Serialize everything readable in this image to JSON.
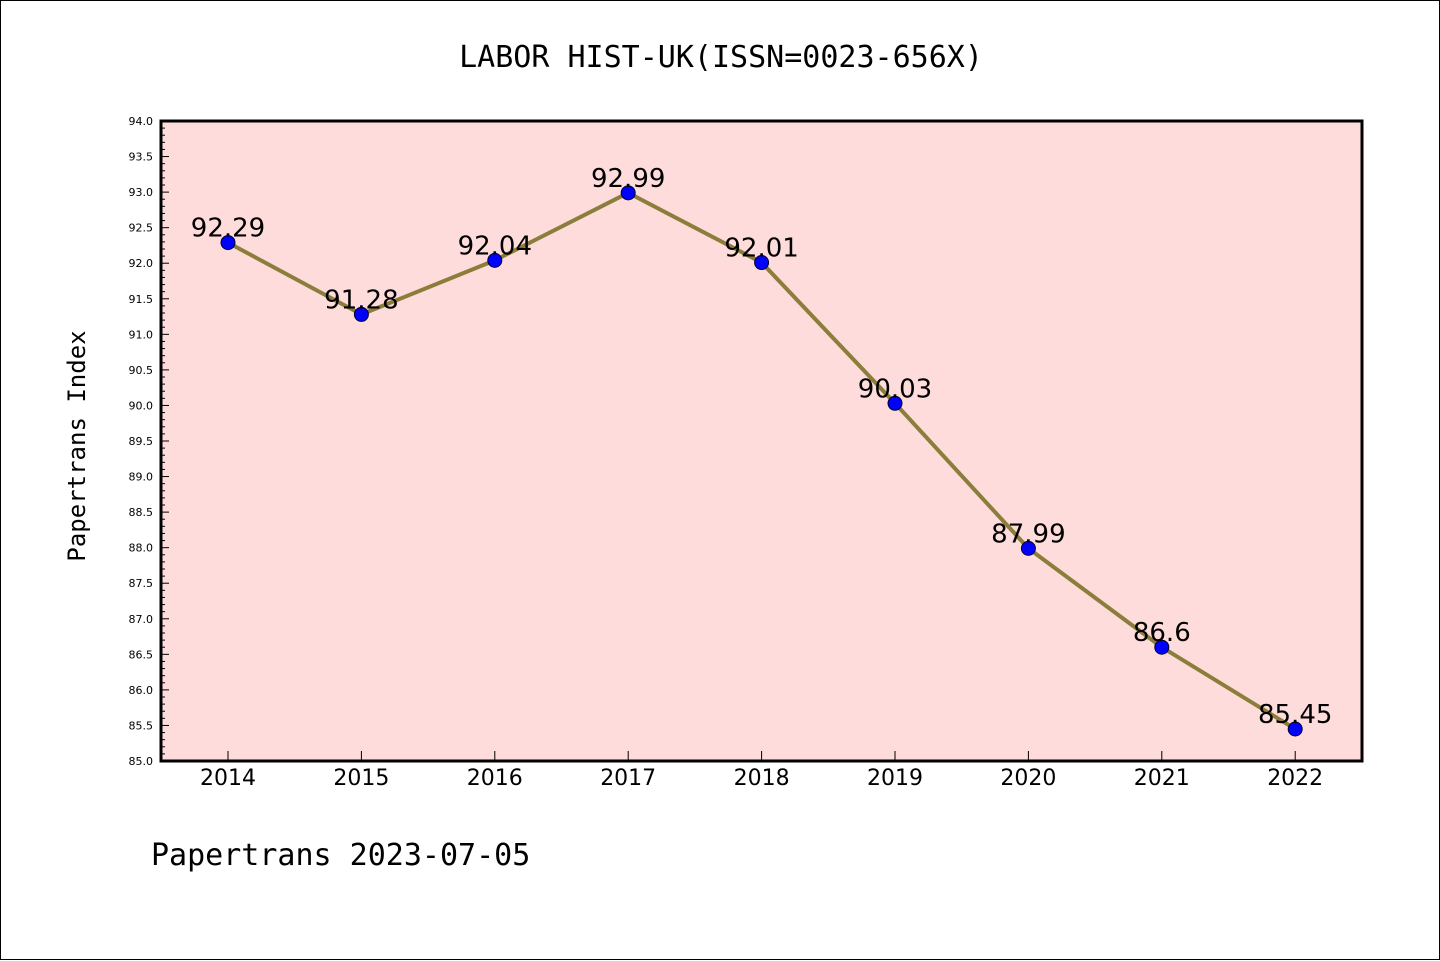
{
  "chart_data": {
    "type": "line",
    "title": "LABOR HIST-UK(ISSN=0023-656X)",
    "ylabel": "Papertrans Index",
    "xlabel": "",
    "footer": "Papertrans 2023-07-05",
    "x": [
      "2014",
      "2015",
      "2016",
      "2017",
      "2018",
      "2019",
      "2020",
      "2021",
      "2022"
    ],
    "series": [
      {
        "values": [
          92.29,
          91.28,
          92.04,
          92.99,
          92.01,
          90.03,
          87.99,
          86.6,
          85.45
        ],
        "labels": [
          "92.29",
          "91.28",
          "92.04",
          "92.99",
          "92.01",
          "90.03",
          "87.99",
          "86.6",
          "85.45"
        ]
      }
    ],
    "ylim": [
      85.0,
      94.0
    ],
    "yticks": [
      "85.0",
      "85.5",
      "86.0",
      "86.5",
      "87.0",
      "87.5",
      "88.0",
      "88.5",
      "89.0",
      "89.5",
      "90.0",
      "90.5",
      "91.0",
      "91.5",
      "92.0",
      "92.5",
      "93.0",
      "93.5",
      "94.0"
    ],
    "grid": false,
    "legend": "none",
    "colors": {
      "plot_background": "#ffdcdc",
      "line": "#8b7d3a",
      "marker": "#0000ff"
    }
  }
}
